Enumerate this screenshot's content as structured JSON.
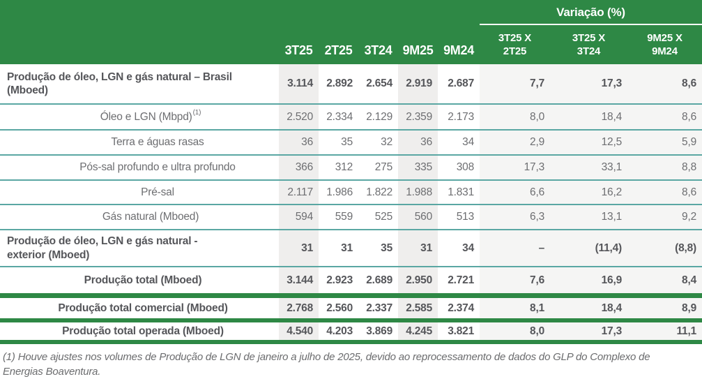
{
  "table": {
    "header": {
      "variation_title": "Variação (%)",
      "periods": [
        "3T25",
        "2T25",
        "3T24",
        "9M25",
        "9M24"
      ],
      "variations": [
        {
          "line1": "3T25 X",
          "line2": "2T25"
        },
        {
          "line1": "3T25 X",
          "line2": "3T24"
        },
        {
          "line1": "9M25 X",
          "line2": "9M24"
        }
      ]
    },
    "rows": [
      {
        "label": "Produção de óleo, LGN e gás natural – Brasil",
        "label2": "(Mboed)",
        "values": [
          "3.114",
          "2.892",
          "2.654",
          "2.919",
          "2.687",
          "7,7",
          "17,3",
          "8,6"
        ]
      },
      {
        "label": "Óleo e LGN (Mbpd)",
        "sup": "(1)",
        "values": [
          "2.520",
          "2.334",
          "2.129",
          "2.359",
          "2.173",
          "8,0",
          "18,4",
          "8,6"
        ]
      },
      {
        "label": "Terra e águas rasas",
        "values": [
          "36",
          "35",
          "32",
          "36",
          "34",
          "2,9",
          "12,5",
          "5,9"
        ]
      },
      {
        "label": "Pós-sal profundo e ultra profundo",
        "values": [
          "366",
          "312",
          "275",
          "335",
          "308",
          "17,3",
          "33,1",
          "8,8"
        ]
      },
      {
        "label": "Pré-sal",
        "values": [
          "2.117",
          "1.986",
          "1.822",
          "1.988",
          "1.831",
          "6,6",
          "16,2",
          "8,6"
        ]
      },
      {
        "label": "Gás natural (Mboed)",
        "values": [
          "594",
          "559",
          "525",
          "560",
          "513",
          "6,3",
          "13,1",
          "9,2"
        ]
      },
      {
        "label": "Produção de óleo, LGN e gás natural -",
        "label2": "exterior (Mboed)",
        "values": [
          "31",
          "31",
          "35",
          "31",
          "34",
          "–",
          "(11,4)",
          "(8,8)"
        ]
      },
      {
        "label": "Produção total (Mboed)",
        "values": [
          "3.144",
          "2.923",
          "2.689",
          "2.950",
          "2.721",
          "7,6",
          "16,9",
          "8,4"
        ]
      },
      {
        "label": "Produção total comercial (Mboed)",
        "values": [
          "2.768",
          "2.560",
          "2.337",
          "2.585",
          "2.374",
          "8,1",
          "18,4",
          "8,9"
        ]
      },
      {
        "label": "Produção total operada (Mboed)",
        "values": [
          "4.540",
          "4.203",
          "3.869",
          "4.245",
          "3.821",
          "8,0",
          "17,3",
          "11,1"
        ]
      }
    ],
    "footnote": "(1) Houve ajustes nos volumes de Produção de LGN de janeiro a julho de 2025, devido ao reprocessamento de dados do GLP do Complexo de Energias Boaventura."
  },
  "colors": {
    "header_green": "#2E8845",
    "divider_teal": "#5AA7A3",
    "column_shade": "#EFEEED",
    "variation_bg": "#F5F5F4",
    "text_regular": "#6D6E71",
    "text_bold": "#55565A"
  }
}
